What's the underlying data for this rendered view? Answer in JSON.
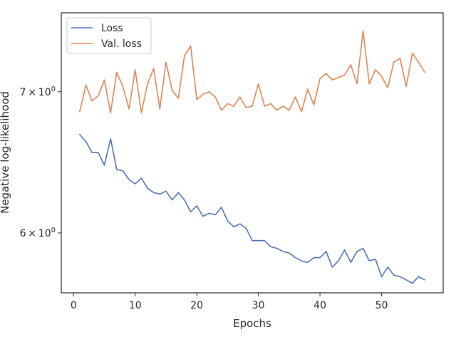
{
  "chart_data": {
    "type": "line",
    "title": "",
    "xlabel": "Epochs",
    "ylabel": "Negative log-likelihood",
    "x_ticks": [
      0,
      10,
      20,
      30,
      40,
      50
    ],
    "y_ticks": [
      {
        "value": 6,
        "label_base": "6",
        "label_times": "×",
        "label_exp_base": "10",
        "label_exp": "0"
      },
      {
        "value": 7,
        "label_base": "7",
        "label_times": "×",
        "label_exp_base": "10",
        "label_exp": "0"
      }
    ],
    "xlim": [
      -2,
      60
    ],
    "ylim": [
      5.62,
      7.63
    ],
    "y_scale": "log",
    "grid": false,
    "legend_position": "top-left",
    "x": [
      1,
      2,
      3,
      4,
      5,
      6,
      7,
      8,
      9,
      10,
      11,
      12,
      13,
      14,
      15,
      16,
      17,
      18,
      19,
      20,
      21,
      22,
      23,
      24,
      25,
      26,
      27,
      28,
      29,
      30,
      31,
      32,
      33,
      34,
      35,
      36,
      37,
      38,
      39,
      40,
      41,
      42,
      43,
      44,
      45,
      46,
      47,
      48,
      49,
      50,
      51,
      52,
      53,
      54,
      55,
      56,
      57
    ],
    "series": [
      {
        "name": "Loss",
        "color": "#4c72b0",
        "values": [
          6.68,
          6.63,
          6.55,
          6.55,
          6.46,
          6.65,
          6.43,
          6.42,
          6.36,
          6.33,
          6.37,
          6.3,
          6.27,
          6.26,
          6.28,
          6.22,
          6.27,
          6.22,
          6.14,
          6.18,
          6.11,
          6.13,
          6.12,
          6.17,
          6.08,
          6.04,
          6.06,
          6.03,
          5.95,
          5.95,
          5.95,
          5.91,
          5.9,
          5.88,
          5.87,
          5.84,
          5.82,
          5.81,
          5.84,
          5.84,
          5.88,
          5.78,
          5.82,
          5.89,
          5.81,
          5.88,
          5.9,
          5.82,
          5.83,
          5.72,
          5.78,
          5.73,
          5.72,
          5.7,
          5.68,
          5.72,
          5.7
        ]
      },
      {
        "name": "Val. loss",
        "color": "#dd8452",
        "values": [
          6.85,
          7.05,
          6.93,
          6.97,
          7.09,
          6.84,
          7.15,
          7.04,
          6.87,
          7.17,
          6.84,
          7.06,
          7.18,
          6.87,
          7.23,
          7.01,
          6.95,
          7.28,
          7.36,
          6.94,
          6.98,
          7.0,
          6.96,
          6.86,
          6.91,
          6.89,
          6.96,
          6.88,
          6.89,
          7.06,
          6.89,
          6.91,
          6.86,
          6.89,
          6.86,
          6.96,
          6.85,
          7.02,
          6.9,
          7.1,
          7.14,
          7.09,
          7.11,
          7.13,
          7.21,
          7.06,
          7.48,
          7.06,
          7.17,
          7.12,
          7.03,
          7.23,
          7.26,
          7.04,
          7.3,
          7.23,
          7.15
        ]
      }
    ]
  }
}
